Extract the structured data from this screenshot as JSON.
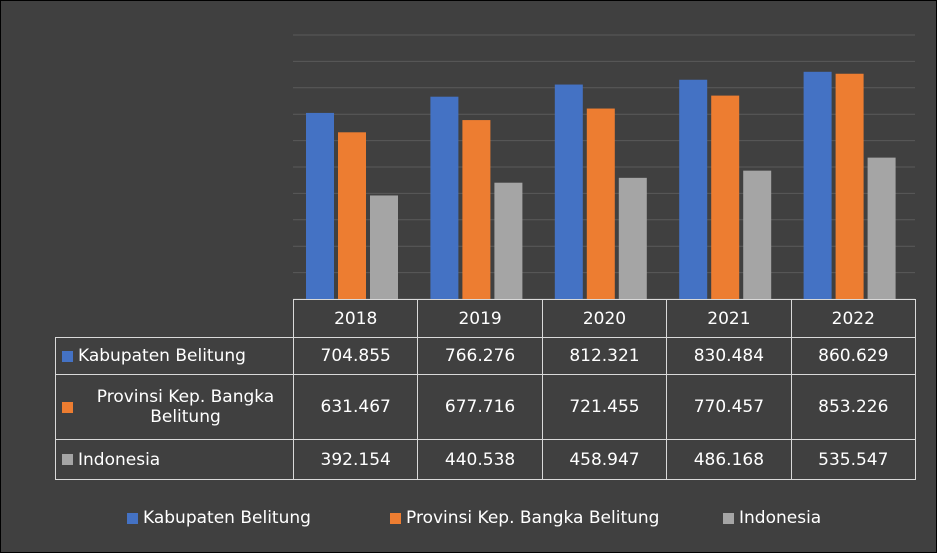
{
  "chart_data": {
    "type": "bar",
    "categories": [
      "2018",
      "2019",
      "2020",
      "2021",
      "2022"
    ],
    "series": [
      {
        "name": "Kabupaten Belitung",
        "color": "#4472c4",
        "values": [
          704.855,
          766.276,
          812.321,
          830.484,
          860.629
        ]
      },
      {
        "name": "Provinsi Kep. Bangka Belitung",
        "color": "#ed7d31",
        "values": [
          631.467,
          677.716,
          721.455,
          770.457,
          853.226
        ]
      },
      {
        "name": "Indonesia",
        "color": "#a5a5a5",
        "values": [
          392.154,
          440.538,
          458.947,
          486.168,
          535.547
        ]
      }
    ],
    "ylim": [
      0,
      1000
    ],
    "yticks": [
      0,
      100,
      200,
      300,
      400,
      500,
      600,
      700,
      800,
      900,
      1000
    ],
    "grid": true
  }
}
